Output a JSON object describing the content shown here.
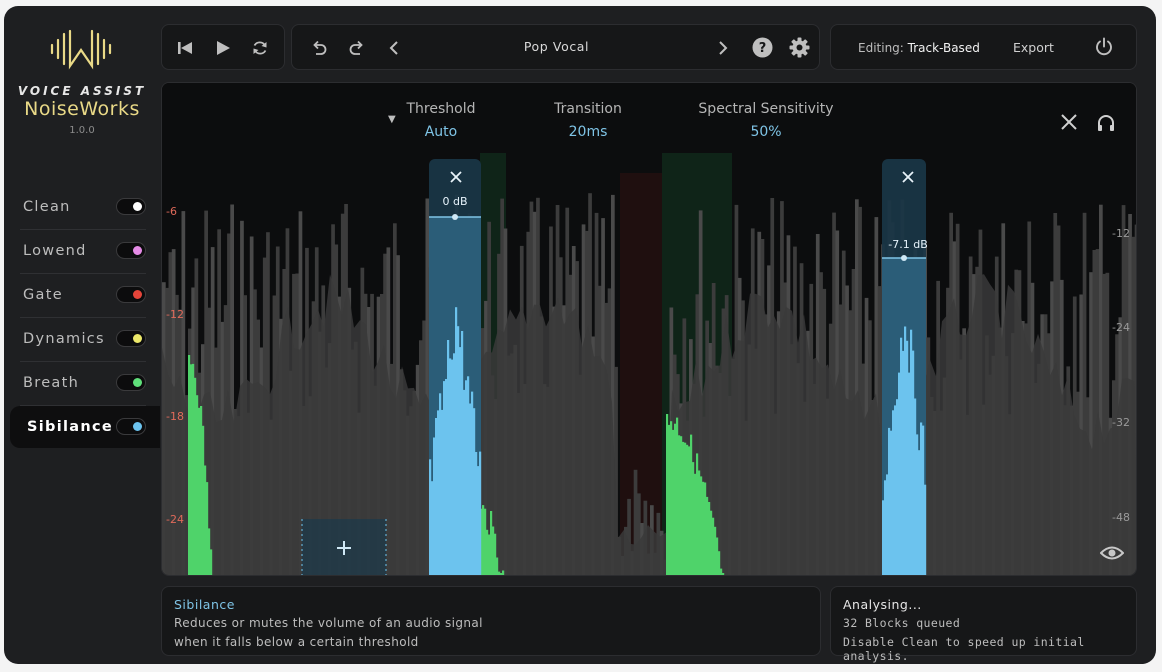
{
  "brand": {
    "tagline": "VOICE ASSIST",
    "name": "NoiseWorks",
    "version": "1.0.0"
  },
  "modules": [
    {
      "label": "Clean",
      "dot": "#ffffff",
      "active": false
    },
    {
      "label": "Lowend",
      "dot": "#e58be6",
      "active": false
    },
    {
      "label": "Gate",
      "dot": "#e5453a",
      "active": false
    },
    {
      "label": "Dynamics",
      "dot": "#ece86a",
      "active": false
    },
    {
      "label": "Breath",
      "dot": "#5fe07a",
      "active": false
    },
    {
      "label": "Sibilance",
      "dot": "#6cc3ee",
      "active": true
    }
  ],
  "toolbar": {
    "icons": [
      "skip-back-icon",
      "play-icon",
      "loop-icon",
      "undo-icon",
      "redo-icon",
      "chevron-left-icon",
      "chevron-right-icon",
      "help-icon",
      "settings-icon",
      "power-icon"
    ],
    "preset": "Pop Vocal",
    "editing_label": "Editing:",
    "editing_mode": "Track-Based",
    "export_label": "Export"
  },
  "params": [
    {
      "label": "Threshold",
      "value": "Auto"
    },
    {
      "label": "Transition",
      "value": "20ms"
    },
    {
      "label": "Spectral Sensitivity",
      "value": "50%"
    }
  ],
  "scale_left": [
    "-6",
    "-12",
    "-18",
    "-24"
  ],
  "scale_right": [
    "-12",
    "-24",
    "-32",
    "-48"
  ],
  "bands": [
    {
      "value": "0 dB"
    },
    {
      "value": "-7.1 dB"
    }
  ],
  "colors": {
    "accent": "#6cc3ee",
    "brand_gold": "#e9d987",
    "reduction_green": "#4fd36a",
    "scale_red": "#e06a5a"
  },
  "info": {
    "title": "Sibilance",
    "line1": "Reduces or mutes the volume of an audio signal",
    "line2": "when it falls below a certain threshold"
  },
  "status": {
    "title": "Analysing...",
    "line1": "32 Blocks queued",
    "line2": "Disable Clean to speed up initial analysis."
  }
}
